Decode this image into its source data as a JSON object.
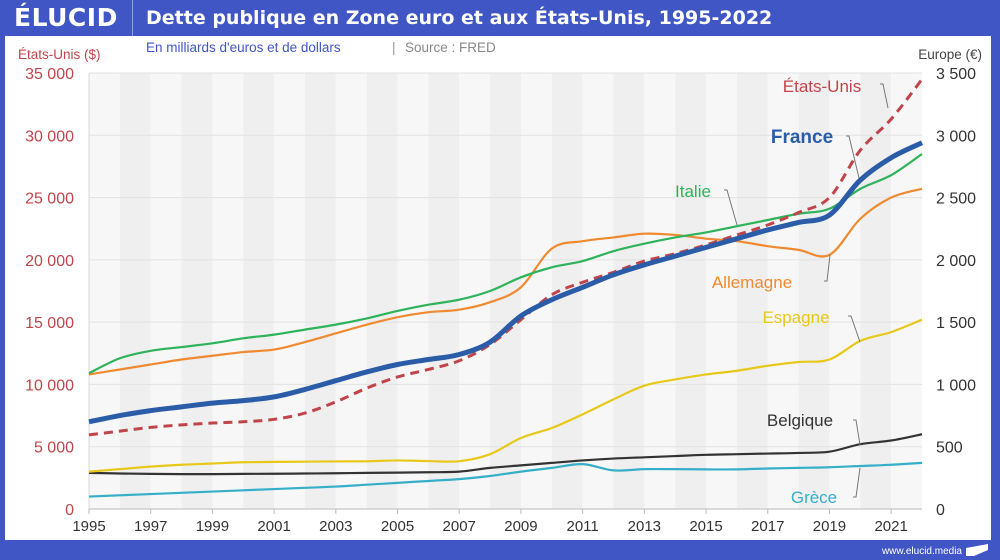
{
  "brand": {
    "logo": "ÉLUCID",
    "url": "www.elucid.media"
  },
  "header": {
    "title": "Dette publique en Zone euro et aux États-Unis, 1995-2022"
  },
  "subtitle": {
    "text": "En milliards d'euros et de dollars",
    "separator": "|",
    "source": "Source : FRED"
  },
  "colors": {
    "brand": "#3f56c4",
    "us": "#c0454a",
    "france": "#2a5ca8",
    "italie": "#2eb35a",
    "allemagne": "#f08a30",
    "espagne": "#e8c818",
    "belgique": "#333333",
    "grece": "#35afc8"
  },
  "chart_data": {
    "type": "line",
    "title": "Dette publique en Zone euro et aux États-Unis, 1995-2022",
    "subtitle": "En milliards d'euros et de dollars | Source : FRED",
    "ylabel_left": "États-Unis ($)",
    "ylabel_right": "Europe (€)",
    "ylim_left": [
      0,
      35000
    ],
    "ylim_right": [
      0,
      3500
    ],
    "yticks_left": [
      "0",
      "5 000",
      "10 000",
      "15 000",
      "20 000",
      "25 000",
      "30 000",
      "35 000"
    ],
    "yticks_right": [
      "0",
      "500",
      "1 000",
      "1 500",
      "2 000",
      "2 500",
      "3 000",
      "3 500"
    ],
    "xticks": [
      "1995",
      "1997",
      "1999",
      "2001",
      "2003",
      "2005",
      "2007",
      "2009",
      "2011",
      "2013",
      "2015",
      "2017",
      "2019",
      "2021"
    ],
    "x": [
      1995,
      1996,
      1997,
      1998,
      1999,
      2000,
      2001,
      2002,
      2003,
      2004,
      2005,
      2006,
      2007,
      2008,
      2009,
      2010,
      2011,
      2012,
      2013,
      2014,
      2015,
      2016,
      2017,
      2018,
      2019,
      2020,
      2021,
      2022
    ],
    "grid": true,
    "series": [
      {
        "name": "États-Unis",
        "axis": "left",
        "style": "dashed",
        "values": [
          5950,
          6250,
          6550,
          6750,
          6900,
          7000,
          7200,
          7700,
          8600,
          9700,
          10600,
          11200,
          11900,
          13200,
          15200,
          17200,
          18200,
          19000,
          19900,
          20500,
          21200,
          22000,
          22800,
          23800,
          25000,
          28800,
          31300,
          34500
        ]
      },
      {
        "name": "France",
        "axis": "right",
        "style": "bold",
        "values": [
          700,
          750,
          790,
          820,
          850,
          870,
          900,
          960,
          1030,
          1100,
          1160,
          1200,
          1240,
          1340,
          1550,
          1680,
          1780,
          1880,
          1960,
          2030,
          2100,
          2170,
          2240,
          2300,
          2360,
          2640,
          2820,
          2940
        ]
      },
      {
        "name": "Italie",
        "axis": "right",
        "style": "solid",
        "values": [
          1090,
          1210,
          1270,
          1300,
          1330,
          1370,
          1400,
          1440,
          1480,
          1530,
          1590,
          1640,
          1680,
          1750,
          1860,
          1940,
          1990,
          2070,
          2130,
          2180,
          2220,
          2270,
          2320,
          2370,
          2410,
          2570,
          2680,
          2850
        ]
      },
      {
        "name": "Allemagne",
        "axis": "right",
        "style": "solid",
        "values": [
          1080,
          1120,
          1160,
          1200,
          1230,
          1260,
          1280,
          1340,
          1410,
          1480,
          1540,
          1580,
          1600,
          1660,
          1780,
          2090,
          2150,
          2180,
          2210,
          2200,
          2170,
          2150,
          2110,
          2080,
          2040,
          2330,
          2500,
          2570
        ]
      },
      {
        "name": "Espagne",
        "axis": "right",
        "style": "solid",
        "values": [
          300,
          320,
          340,
          355,
          365,
          375,
          378,
          380,
          382,
          383,
          390,
          385,
          384,
          440,
          570,
          650,
          760,
          880,
          990,
          1040,
          1080,
          1110,
          1150,
          1180,
          1200,
          1350,
          1420,
          1520
        ]
      },
      {
        "name": "Belgique",
        "axis": "right",
        "style": "solid",
        "values": [
          290,
          285,
          282,
          280,
          280,
          282,
          283,
          285,
          287,
          290,
          292,
          295,
          300,
          330,
          350,
          370,
          390,
          405,
          415,
          425,
          435,
          440,
          445,
          450,
          460,
          520,
          550,
          600
        ]
      },
      {
        "name": "Grèce",
        "axis": "right",
        "style": "solid",
        "values": [
          100,
          110,
          120,
          130,
          140,
          150,
          160,
          170,
          180,
          195,
          210,
          225,
          240,
          265,
          300,
          330,
          360,
          310,
          320,
          320,
          318,
          318,
          325,
          330,
          335,
          345,
          355,
          370
        ]
      }
    ],
    "annotations": [
      {
        "text": "États-Unis",
        "series": "États-Unis"
      },
      {
        "text": "France",
        "series": "France"
      },
      {
        "text": "Italie",
        "series": "Italie"
      },
      {
        "text": "Allemagne",
        "series": "Allemagne"
      },
      {
        "text": "Espagne",
        "series": "Espagne"
      },
      {
        "text": "Belgique",
        "series": "Belgique"
      },
      {
        "text": "Grèce",
        "series": "Grèce"
      }
    ],
    "legend": "inline-labels"
  }
}
